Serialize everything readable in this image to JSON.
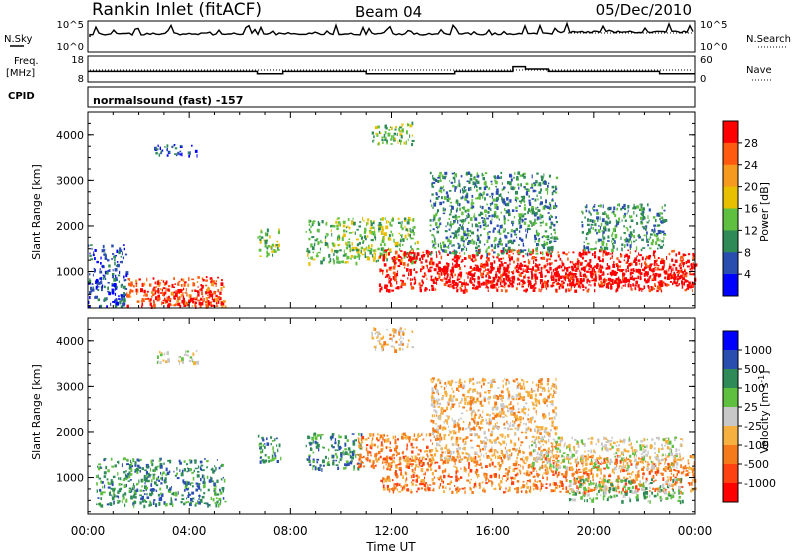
{
  "header": {
    "radar": "Rankin Inlet (fitACF)",
    "beam": "Beam 04",
    "date": "05/Dec/2010"
  },
  "top_panels": {
    "nsky_label": "N.Sky",
    "nsky_ticks": [
      "10^5",
      "10^0"
    ],
    "nsearch_label": "N.Search",
    "nsearch_ticks": [
      "10^5",
      "10^0"
    ],
    "freq_label": "Freq.",
    "freq_unit": "[MHz]",
    "freq_ticks": [
      "18",
      "8"
    ],
    "nave_label": "Nave",
    "nave_ticks": [
      "60",
      "0"
    ],
    "cpid_label": "CPID",
    "cpid_text": "normalsound (fast) -157"
  },
  "chart_data": [
    {
      "type": "heatmap",
      "name": "power",
      "ylabel": "Slant Range [km]",
      "yticks": [
        "1000",
        "2000",
        "3000",
        "4000"
      ],
      "ylim": [
        200,
        4500
      ],
      "xlim": [
        0,
        24
      ],
      "colorbar_label": "Power [dB]",
      "colorbar_ticks": [
        "4",
        "8",
        "12",
        "16",
        "20",
        "24",
        "28"
      ],
      "colors": [
        "#0000ff",
        "#2a4db0",
        "#2e8b57",
        "#5fbf3f",
        "#e8c000",
        "#f59a1e",
        "#ff5a10",
        "#ff0000"
      ],
      "clusters": [
        {
          "t0": 0.0,
          "t1": 1.5,
          "r0": 250,
          "r1": 1600,
          "level": 1
        },
        {
          "t0": 1.5,
          "t1": 5.4,
          "r0": 250,
          "r1": 900,
          "level": 6
        },
        {
          "t0": 2.3,
          "t1": 5.2,
          "r0": 250,
          "r1": 650,
          "level": 7
        },
        {
          "t0": 6.7,
          "t1": 7.6,
          "r0": 1350,
          "r1": 1950,
          "level": 3
        },
        {
          "t0": 8.6,
          "t1": 13.0,
          "r0": 1200,
          "r1": 2200,
          "level": 3
        },
        {
          "t0": 11.5,
          "t1": 24.0,
          "r0": 600,
          "r1": 1500,
          "level": 7
        },
        {
          "t0": 14.0,
          "t1": 24.0,
          "r0": 700,
          "r1": 1200,
          "level": 8
        },
        {
          "t0": 13.5,
          "t1": 18.5,
          "r0": 1400,
          "r1": 3200,
          "level": 2
        },
        {
          "t0": 19.5,
          "t1": 22.8,
          "r0": 1500,
          "r1": 2500,
          "level": 2
        },
        {
          "t0": 11.2,
          "t1": 12.8,
          "r0": 3800,
          "r1": 4300,
          "level": 3
        },
        {
          "t0": 2.6,
          "t1": 4.3,
          "r0": 3550,
          "r1": 3800,
          "level": 1
        }
      ]
    },
    {
      "type": "heatmap",
      "name": "velocity",
      "ylabel": "Slant Range [km]",
      "yticks": [
        "1000",
        "2000",
        "3000",
        "4000"
      ],
      "ylim": [
        200,
        4500
      ],
      "xlim": [
        0,
        24
      ],
      "xlabel": "Time UT",
      "xticks": [
        "00:00",
        "04:00",
        "08:00",
        "12:00",
        "16:00",
        "20:00",
        "00:00"
      ],
      "colorbar_label": "Velocity [m s",
      "colorbar_label_sup": "-1",
      "colorbar_label_end": "]",
      "colorbar_ticks": [
        "1000",
        "500",
        "100",
        "25",
        "-25",
        "-100",
        "-500",
        "-1000"
      ],
      "colors": [
        "#0000ff",
        "#2a4db0",
        "#2e8b57",
        "#5fbf3f",
        "#c8c8c8",
        "#f5b040",
        "#f57a1a",
        "#ff4010",
        "#ff0000"
      ],
      "clusters": [
        {
          "t0": 0.3,
          "t1": 5.4,
          "r0": 400,
          "r1": 1450,
          "level": 2
        },
        {
          "t0": 6.7,
          "t1": 7.6,
          "r0": 1350,
          "r1": 1950,
          "level": 2
        },
        {
          "t0": 8.6,
          "t1": 10.8,
          "r0": 1200,
          "r1": 2000,
          "level": 2
        },
        {
          "t0": 10.6,
          "t1": 13.6,
          "r0": 1250,
          "r1": 2000,
          "level": 6
        },
        {
          "t0": 11.5,
          "t1": 24.0,
          "r0": 700,
          "r1": 1500,
          "level": 6
        },
        {
          "t0": 17.5,
          "t1": 23.5,
          "r0": 1200,
          "r1": 1900,
          "level": 4
        },
        {
          "t0": 13.5,
          "t1": 18.5,
          "r0": 1400,
          "r1": 3200,
          "level": 5
        },
        {
          "t0": 19.0,
          "t1": 23.5,
          "r0": 500,
          "r1": 1000,
          "level": 3
        },
        {
          "t0": 11.2,
          "t1": 12.8,
          "r0": 3800,
          "r1": 4300,
          "level": 5
        },
        {
          "t0": 2.6,
          "t1": 4.3,
          "r0": 3550,
          "r1": 3800,
          "level": 4
        }
      ]
    }
  ]
}
